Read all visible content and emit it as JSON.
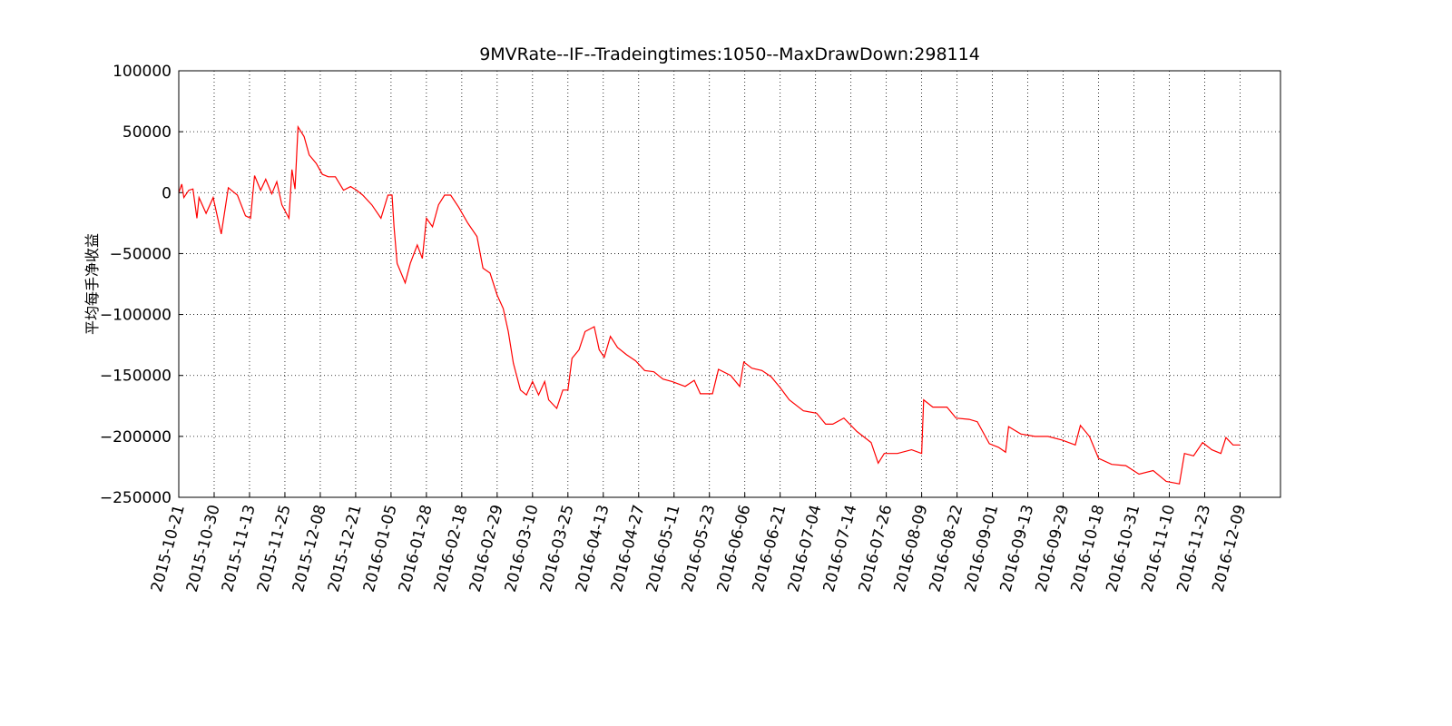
{
  "chart_data": {
    "type": "line",
    "title": "9MVRate--IF--Tradeingtimes:1050--MaxDrawDown:298114",
    "y_label": "平均每手净收益",
    "color": "#ff0000",
    "grid": true,
    "xlim": [
      0,
      1090
    ],
    "ylim": [
      -250000,
      100000
    ],
    "yticks": [
      {
        "value": -250000,
        "label": "−250000"
      },
      {
        "value": -200000,
        "label": "−200000"
      },
      {
        "value": -150000,
        "label": "−150000"
      },
      {
        "value": -100000,
        "label": "−100000"
      },
      {
        "value": -50000,
        "label": "−50000"
      },
      0,
      50000,
      100000
    ],
    "xticks": [
      {
        "value": 0,
        "label": "2015-10-21"
      },
      {
        "value": 35,
        "label": "2015-10-30"
      },
      {
        "value": 70,
        "label": "2015-11-13"
      },
      {
        "value": 105,
        "label": "2015-11-25"
      },
      {
        "value": 140,
        "label": "2015-12-08"
      },
      {
        "value": 175,
        "label": "2015-12-21"
      },
      {
        "value": 210,
        "label": "2016-01-05"
      },
      {
        "value": 245,
        "label": "2016-01-28"
      },
      {
        "value": 280,
        "label": "2016-02-18"
      },
      {
        "value": 315,
        "label": "2016-02-29"
      },
      {
        "value": 350,
        "label": "2016-03-10"
      },
      {
        "value": 385,
        "label": "2016-03-25"
      },
      {
        "value": 420,
        "label": "2016-04-13"
      },
      {
        "value": 455,
        "label": "2016-04-27"
      },
      {
        "value": 490,
        "label": "2016-05-11"
      },
      {
        "value": 525,
        "label": "2016-05-23"
      },
      {
        "value": 560,
        "label": "2016-06-06"
      },
      {
        "value": 595,
        "label": "2016-06-21"
      },
      {
        "value": 630,
        "label": "2016-07-04"
      },
      {
        "value": 665,
        "label": "2016-07-14"
      },
      {
        "value": 700,
        "label": "2016-07-26"
      },
      {
        "value": 735,
        "label": "2016-08-09"
      },
      {
        "value": 770,
        "label": "2016-08-22"
      },
      {
        "value": 805,
        "label": "2016-09-01"
      },
      {
        "value": 840,
        "label": "2016-09-13"
      },
      {
        "value": 875,
        "label": "2016-09-29"
      },
      {
        "value": 910,
        "label": "2016-10-18"
      },
      {
        "value": 945,
        "label": "2016-10-31"
      },
      {
        "value": 980,
        "label": "2016-11-10"
      },
      {
        "value": 1015,
        "label": "2016-11-23"
      },
      {
        "value": 1050,
        "label": "2016-12-09"
      }
    ],
    "x": [
      0,
      3,
      5,
      10,
      14,
      18,
      20,
      27,
      34,
      42,
      49,
      58,
      66,
      71,
      75,
      81,
      86,
      92,
      97,
      102,
      109,
      112,
      115,
      118,
      124,
      129,
      136,
      142,
      148,
      155,
      163,
      170,
      176,
      182,
      191,
      200,
      207,
      211,
      213,
      216,
      224,
      229,
      236,
      241,
      245,
      251,
      257,
      263,
      269,
      277,
      286,
      295,
      301,
      308,
      315,
      321,
      326,
      331,
      338,
      344,
      350,
      356,
      362,
      366,
      374,
      380,
      385,
      389,
      396,
      402,
      411,
      416,
      421,
      427,
      434,
      443,
      452,
      461,
      470,
      479,
      488,
      501,
      510,
      516,
      528,
      534,
      546,
      555,
      559,
      567,
      577,
      586,
      595,
      604,
      618,
      631,
      640,
      647,
      658,
      671,
      685,
      692,
      698,
      711,
      725,
      735,
      737,
      746,
      760,
      769,
      782,
      790,
      802,
      811,
      818,
      821,
      833,
      847,
      860,
      874,
      887,
      892,
      901,
      910,
      923,
      937,
      950,
      964,
      977,
      990,
      995,
      1004,
      1013,
      1022,
      1031,
      1036,
      1043,
      1050
    ],
    "values": [
      0,
      7000,
      -4000,
      2000,
      3000,
      -21000,
      -4000,
      -17000,
      -4000,
      -34000,
      4000,
      -2000,
      -19000,
      -21000,
      14000,
      2000,
      11000,
      -1000,
      9000,
      -10000,
      -21000,
      19000,
      3000,
      54000,
      46000,
      31000,
      24000,
      15000,
      13000,
      13000,
      2000,
      5000,
      2000,
      -2000,
      -10000,
      -21000,
      -2000,
      -2000,
      -28000,
      -58000,
      -74000,
      -58000,
      -43000,
      -54000,
      -21000,
      -28000,
      -10000,
      -2000,
      -2000,
      -12000,
      -25000,
      -36000,
      -62000,
      -66000,
      -84000,
      -95000,
      -114000,
      -140000,
      -162000,
      -166000,
      -155000,
      -166000,
      -155000,
      -170000,
      -177000,
      -162000,
      -162000,
      -136000,
      -129000,
      -114000,
      -110000,
      -129000,
      -135000,
      -118000,
      -127000,
      -133000,
      -138000,
      -146000,
      -147000,
      -153000,
      -155000,
      -159000,
      -154000,
      -165000,
      -165000,
      -145000,
      -150000,
      -159000,
      -139000,
      -144000,
      -146000,
      -151000,
      -160000,
      -170000,
      -179000,
      -181000,
      -190000,
      -190000,
      -185000,
      -196000,
      -205000,
      -222000,
      -214000,
      -214000,
      -211000,
      -214000,
      -170000,
      -176000,
      -176000,
      -185000,
      -186000,
      -188000,
      -206000,
      -209000,
      -213000,
      -192000,
      -198000,
      -200000,
      -200000,
      -203000,
      -207000,
      -191000,
      -200000,
      -218000,
      -223000,
      -224000,
      -231000,
      -228000,
      -237000,
      -239000,
      -214000,
      -216000,
      -205000,
      -211000,
      -214000,
      -201000,
      -207000,
      -207000
    ]
  }
}
